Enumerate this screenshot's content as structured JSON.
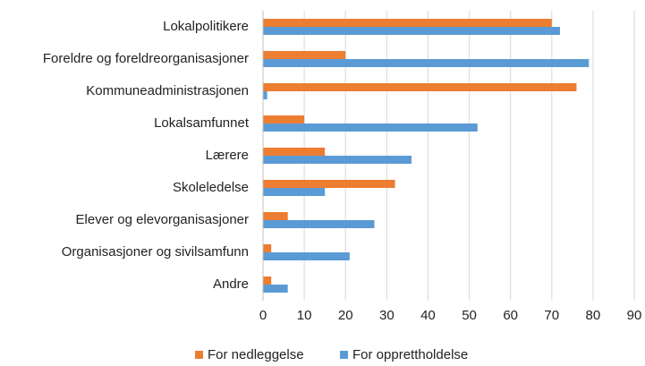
{
  "chart_data": {
    "type": "barh",
    "categories": [
      "Lokalpolitikere",
      "Foreldre og foreldreorganisasjoner",
      "Kommuneadministrasjonen",
      "Lokalsamfunnet",
      "Lærere",
      "Skoleledelse",
      "Elever og elevorganisasjoner",
      "Organisasjoner og sivilsamfunn",
      "Andre"
    ],
    "series": [
      {
        "name": "For nedleggelse",
        "color": "#ed7d31",
        "values": [
          70,
          20,
          76,
          10,
          15,
          32,
          6,
          2,
          2
        ]
      },
      {
        "name": "For opprettholdelse",
        "color": "#5b9bd5",
        "values": [
          72,
          79,
          1,
          52,
          36,
          15,
          27,
          21,
          6
        ]
      }
    ],
    "xlim": [
      0,
      90
    ],
    "xticks": [
      0,
      10,
      20,
      30,
      40,
      50,
      60,
      70,
      80,
      90
    ],
    "grid": true,
    "legend": "bottom"
  }
}
